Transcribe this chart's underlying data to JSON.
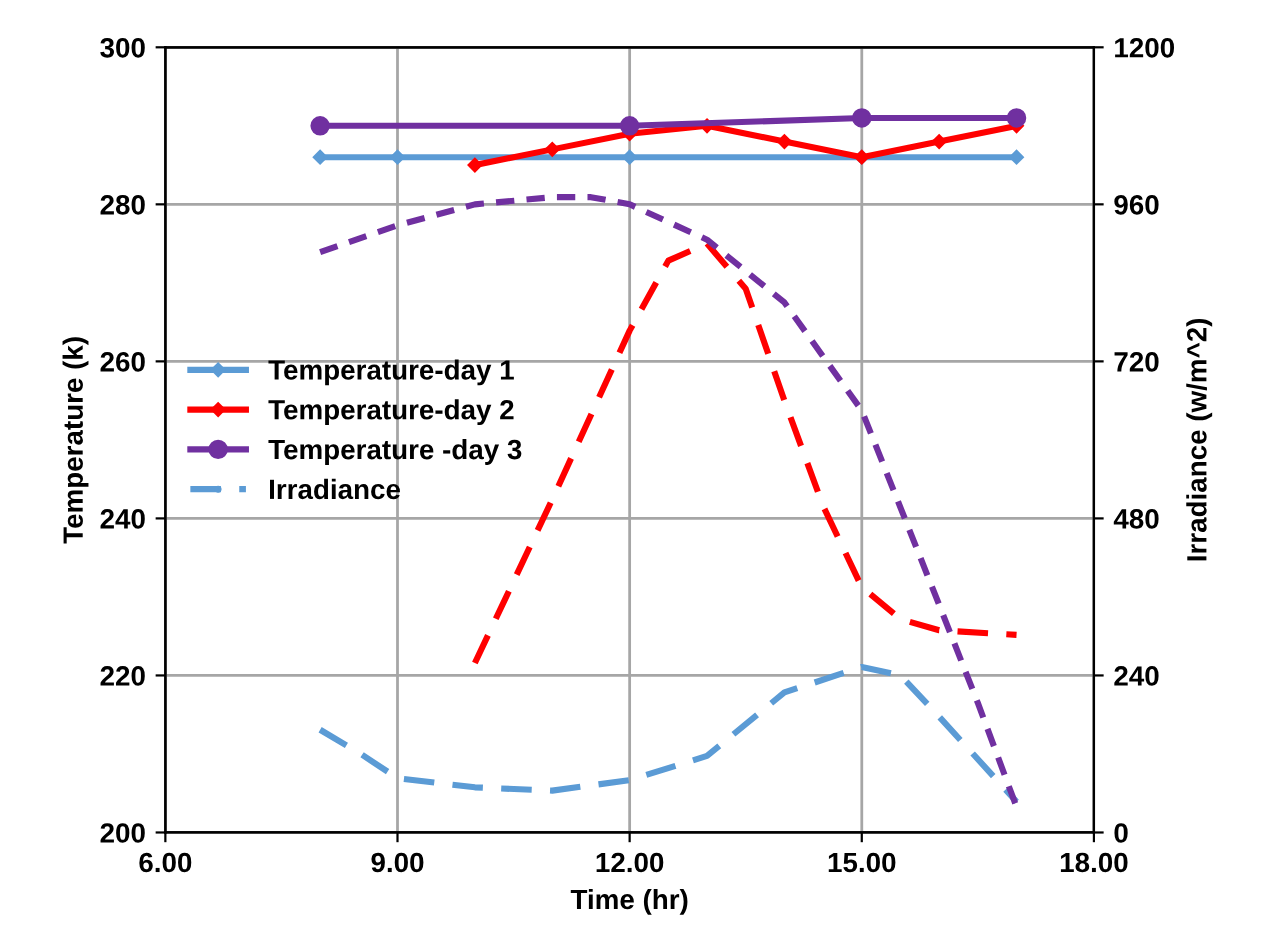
{
  "chart_data": {
    "type": "line",
    "xlabel": "Time (hr)",
    "ylabel": "Temperature (k)",
    "y2label": "Irradiance (w/m^2)",
    "xlim": [
      6,
      18
    ],
    "xticks": [
      {
        "value": 6,
        "label": "6.00"
      },
      {
        "value": 9,
        "label": "9.00"
      },
      {
        "value": 12,
        "label": "12.00"
      },
      {
        "value": 15,
        "label": "15.00"
      },
      {
        "value": 18,
        "label": "18.00"
      }
    ],
    "ylim": [
      200,
      300
    ],
    "yticks": [
      200,
      220,
      240,
      260,
      280,
      300
    ],
    "y2lim": [
      0,
      1200
    ],
    "y2ticks": [
      0,
      240,
      480,
      720,
      960,
      1200
    ],
    "grid": true,
    "legend": "left",
    "series": [
      {
        "name": "Temperature-day 1",
        "color": "#5b9bd5",
        "marker": "diamond",
        "line_style": "solid",
        "x": [
          8,
          9,
          12,
          15,
          17
        ],
        "values": [
          286,
          286,
          286,
          286,
          286
        ]
      },
      {
        "name": "Temperature-day 2",
        "color": "#ff0000",
        "marker": "diamond",
        "line_style": "solid",
        "x": [
          10,
          11,
          12,
          13,
          14,
          15,
          16,
          17
        ],
        "values": [
          285,
          287,
          289,
          290,
          288,
          286,
          288,
          290
        ]
      },
      {
        "name": "Temperature -day 3",
        "color": "#7030a0",
        "marker": "circle",
        "line_style": "solid",
        "x": [
          8,
          12,
          15,
          17
        ],
        "values": [
          290,
          290,
          291,
          291
        ]
      },
      {
        "name": "Irradiance",
        "color": "#5b9bd5",
        "marker": "none",
        "line_style": "dashed",
        "axis": "y2",
        "x": [
          8,
          8.5,
          9,
          10,
          11,
          12,
          13,
          14,
          15,
          15.5,
          16,
          17
        ],
        "values": [
          157,
          122,
          83,
          69,
          64,
          80,
          117,
          214,
          253,
          240,
          177,
          47
        ]
      },
      {
        "color": "#ff0000",
        "marker": "none",
        "line_style": "dashed",
        "axis": "y2",
        "x": [
          10,
          11,
          12,
          12.5,
          13,
          13.5,
          14,
          14.5,
          15,
          15.5,
          16,
          17
        ],
        "values": [
          259,
          509,
          767,
          874,
          900,
          831,
          660,
          499,
          375,
          326,
          309,
          302
        ]
      },
      {
        "color": "#7030a0",
        "marker": "none",
        "line_style": "dotted",
        "axis": "y2",
        "x": [
          8,
          9,
          10,
          11,
          11.5,
          12,
          13,
          14,
          15,
          16,
          16.5,
          17
        ],
        "values": [
          887,
          928,
          960,
          971,
          971,
          960,
          906,
          810,
          645,
          348,
          198,
          39
        ]
      }
    ]
  }
}
